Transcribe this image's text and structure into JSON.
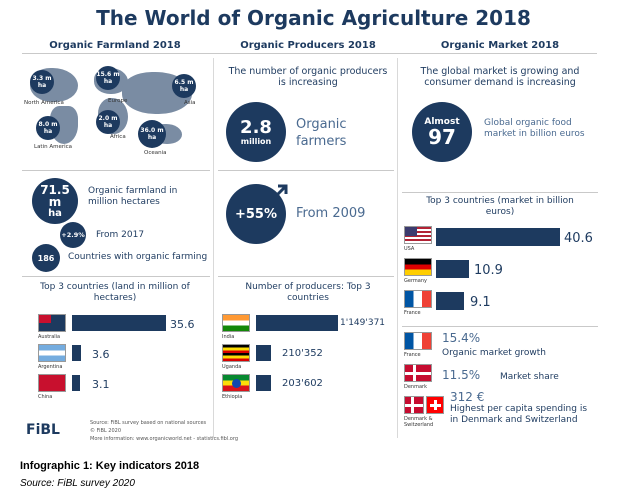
{
  "title": "The World of Organic Agriculture 2018",
  "columns": {
    "farmland": "Organic Farmland 2018",
    "producers": "Organic Producers 2018",
    "market": "Organic Market 2018"
  },
  "map": {
    "badges": [
      {
        "value": "3.3 m",
        "unit": "ha"
      },
      {
        "value": "15.6 m",
        "unit": "ha"
      },
      {
        "value": "6.5 m",
        "unit": "ha"
      },
      {
        "value": "8.0 m",
        "unit": "ha"
      },
      {
        "value": "2.0 m",
        "unit": "ha"
      },
      {
        "value": "36.0 m",
        "unit": "ha"
      }
    ],
    "regions": [
      "North America",
      "Europe",
      "Asia",
      "Latin America",
      "Africa",
      "Oceania"
    ]
  },
  "farmland_stats": {
    "area_value": "71.5 m",
    "area_unit": "ha",
    "area_label": "Organic farmland in million hectares",
    "growth_value": "+2.9%",
    "growth_label": "From 2017",
    "countries_value": "186",
    "countries_label": "Countries with organic farming"
  },
  "producers_stats": {
    "intro": "The number of organic producers is increasing",
    "count_value": "2.8",
    "count_unit": "million",
    "count_label": "Organic farmers",
    "growth_value": "+55%",
    "growth_label": "From 2009"
  },
  "market_stats": {
    "intro": "The global market is growing and consumer demand is increasing",
    "circle_top": "Almost",
    "circle_value": "97",
    "label": "Global organic food market in billion euros"
  },
  "top_land": {
    "heading": "Top 3 countries (land in million of hectares)",
    "rows": [
      {
        "country": "Australia",
        "value": "35.6",
        "fraction": 1.0
      },
      {
        "country": "Argentina",
        "value": "3.6",
        "fraction": 0.1
      },
      {
        "country": "China",
        "value": "3.1",
        "fraction": 0.087
      }
    ]
  },
  "top_producers": {
    "heading": "Number of producers: Top 3 countries",
    "rows": [
      {
        "country": "India",
        "value": "1'149'371",
        "fraction": 1.0
      },
      {
        "country": "Uganda",
        "value": "210'352",
        "fraction": 0.183
      },
      {
        "country": "Ethiopia",
        "value": "203'602",
        "fraction": 0.177
      }
    ]
  },
  "top_market": {
    "heading": "Top 3 countries (market in billion euros)",
    "rows": [
      {
        "country": "USA",
        "value": "40.6",
        "fraction": 1.0
      },
      {
        "country": "Germany",
        "value": "10.9",
        "fraction": 0.268
      },
      {
        "country": "France",
        "value": "9.1",
        "fraction": 0.224
      }
    ]
  },
  "market_highlights": [
    {
      "country": "France",
      "value": "15.4%",
      "label": "Organic market growth"
    },
    {
      "country": "Denmark",
      "value": "11.5%",
      "label": "Market share"
    },
    {
      "country": "Denmark & Switzerland",
      "value": "312 €",
      "label": "Highest per capita spending is in Denmark and Switzerland"
    }
  ],
  "source_note": {
    "line1": "Source: FiBL survey based on national sources",
    "line2": "© FiBL 2020",
    "line3": "More information: www.organicworld.net - statistics.fibl.org"
  },
  "logo": "FiBL",
  "caption": "Infographic 1: Key indicators 2018",
  "caption_source": "Source: FiBL survey 2020",
  "colors": {
    "navy": "#1d3a5f",
    "map": "#7a8ca3",
    "divider": "#c9c9c9"
  }
}
